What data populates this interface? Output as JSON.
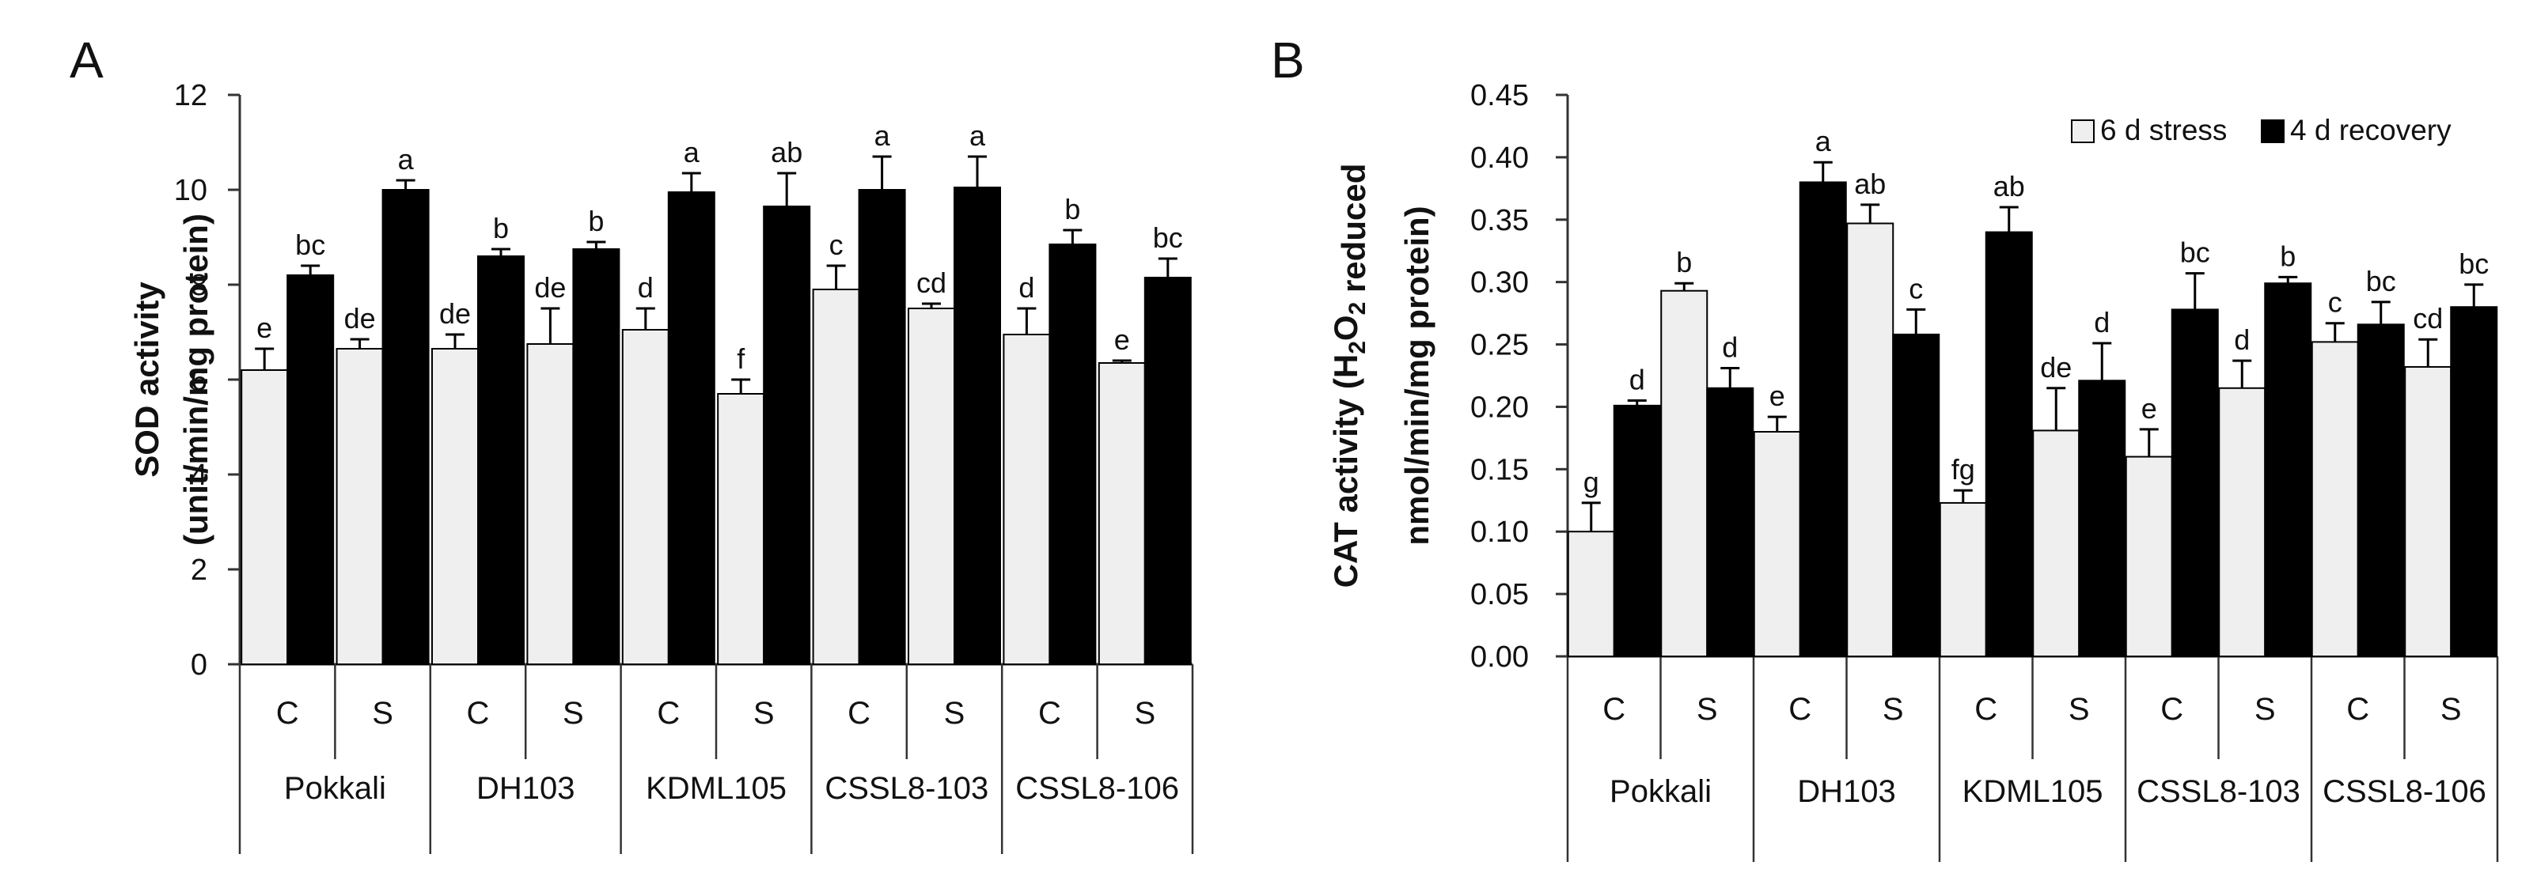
{
  "chart_data": [
    {
      "panel": "A",
      "type": "bar",
      "ylabel": [
        "SOD activity",
        "(unit/min/mg protein)"
      ],
      "ylim": [
        0,
        12
      ],
      "yticks": [
        "0",
        "2",
        "4",
        "6",
        "8",
        "10",
        "12"
      ],
      "y_tick_step": 2,
      "groups": [
        "Pokkali",
        "DH103",
        "KDML105",
        "CSSL8-103",
        "CSSL8-106"
      ],
      "categories": [
        "C",
        "S",
        "C",
        "S",
        "C",
        "S",
        "C",
        "S",
        "C",
        "S"
      ],
      "series": [
        {
          "name": "6 d stress",
          "color": "#efefef",
          "values": [
            6.2,
            6.65,
            6.65,
            6.75,
            7.05,
            5.7,
            7.9,
            7.5,
            6.95,
            6.35
          ],
          "errors": [
            0.45,
            0.2,
            0.3,
            0.75,
            0.45,
            0.3,
            0.5,
            0.1,
            0.55,
            0.05
          ],
          "labels": [
            "e",
            "de",
            "de",
            "de",
            "d",
            "f",
            "c",
            "cd",
            "d",
            "e"
          ]
        },
        {
          "name": "4 d recovery",
          "color": "#000000",
          "values": [
            8.2,
            10.0,
            8.6,
            8.75,
            9.95,
            9.65,
            10.0,
            10.05,
            8.85,
            8.15
          ],
          "errors": [
            0.2,
            0.2,
            0.15,
            0.15,
            0.4,
            0.7,
            0.7,
            0.65,
            0.3,
            0.4
          ],
          "labels": [
            "bc",
            "a",
            "b",
            "b",
            "a",
            "ab",
            "a",
            "a",
            "b",
            "bc"
          ]
        }
      ]
    },
    {
      "panel": "B",
      "type": "bar",
      "ylabel": [
        "CAT activity (H2O2 reduced",
        "nmol/min/mg protein)"
      ],
      "ylim": [
        0,
        0.45
      ],
      "yticks": [
        "0.00",
        "0.05",
        "0.10",
        "0.15",
        "0.20",
        "0.25",
        "0.30",
        "0.35",
        "0.40",
        "0.45"
      ],
      "y_tick_step": 0.05,
      "groups": [
        "Pokkali",
        "DH103",
        "KDML105",
        "CSSL8-103",
        "CSSL8-106"
      ],
      "categories": [
        "C",
        "S",
        "C",
        "S",
        "C",
        "S",
        "C",
        "S",
        "C",
        "S"
      ],
      "legend": {
        "position": "top-right",
        "items": [
          {
            "label": "6 d stress",
            "color": "#efefef"
          },
          {
            "label": "4 d recovery",
            "color": "#000000"
          }
        ]
      },
      "series": [
        {
          "name": "6 d stress",
          "color": "#efefef",
          "values": [
            0.1,
            0.293,
            0.18,
            0.347,
            0.123,
            0.181,
            0.16,
            0.215,
            0.252,
            0.232
          ],
          "errors": [
            0.023,
            0.006,
            0.012,
            0.015,
            0.01,
            0.034,
            0.022,
            0.022,
            0.015,
            0.022
          ],
          "labels": [
            "g",
            "b",
            "e",
            "ab",
            "fg",
            "de",
            "e",
            "d",
            "c",
            "cd"
          ]
        },
        {
          "name": "4 d recovery",
          "color": "#000000",
          "values": [
            0.201,
            0.215,
            0.38,
            0.258,
            0.34,
            0.221,
            0.278,
            0.299,
            0.266,
            0.28
          ],
          "errors": [
            0.004,
            0.016,
            0.016,
            0.02,
            0.02,
            0.03,
            0.029,
            0.005,
            0.018,
            0.018
          ],
          "labels": [
            "d",
            "d",
            "a",
            "c",
            "ab",
            "d",
            "bc",
            "b",
            "bc",
            "bc"
          ]
        }
      ]
    }
  ]
}
